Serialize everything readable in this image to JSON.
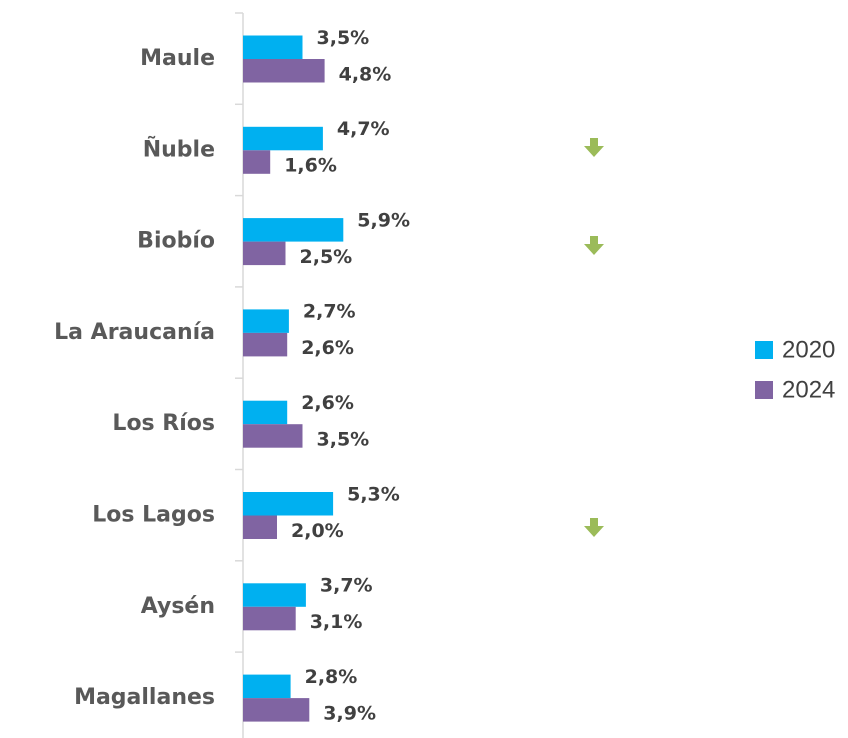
{
  "chart_data": {
    "type": "bar",
    "categories": [
      "Maule",
      "Ñuble",
      "Biobío",
      "La Araucanía",
      "Los Ríos",
      "Los Lagos",
      "Aysén",
      "Magallanes"
    ],
    "series": [
      {
        "name": "2020",
        "color": "#00b0f0",
        "values": [
          3.5,
          4.7,
          5.9,
          2.7,
          2.6,
          5.3,
          3.7,
          2.8
        ],
        "value_labels": [
          "3,5%",
          "4,7%",
          "5,9%",
          "2,7%",
          "2,6%",
          "5,3%",
          "3,7%",
          "2,8%"
        ]
      },
      {
        "name": "2024",
        "color": "#8064a2",
        "values": [
          4.8,
          1.6,
          2.5,
          2.6,
          3.5,
          2.0,
          3.1,
          3.9
        ],
        "value_labels": [
          "4,8%",
          "1,6%",
          "2,5%",
          "2,6%",
          "3,5%",
          "2,0%",
          "3,1%",
          "3,9%"
        ]
      }
    ],
    "legend": "right"
  }
}
